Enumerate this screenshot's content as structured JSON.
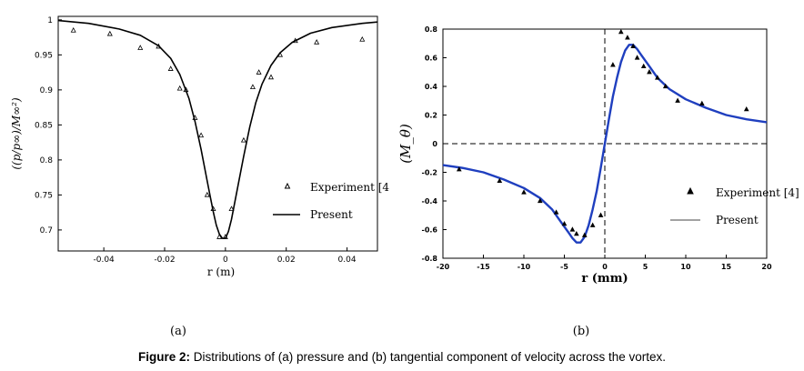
{
  "caption": {
    "prefix": "Figure 2:",
    "text": " Distributions of (a) pressure and (b) tangential component of velocity across the vortex."
  },
  "chart_data": [
    {
      "type": "line",
      "panel_label": "(a)",
      "xlabel": "r (m)",
      "ylabel": "((p/p∞)/M∞²)",
      "xlim": [
        -0.055,
        0.05
      ],
      "ylim": [
        0.67,
        1.005
      ],
      "xticks": [
        -0.04,
        -0.02,
        0,
        0.02,
        0.04
      ],
      "xtick_labels": [
        "-0.04",
        "-0.02",
        "0",
        "0.02",
        "0.04"
      ],
      "yticks": [
        0.7,
        0.75,
        0.8,
        0.85,
        0.9,
        0.95,
        1
      ],
      "ytick_labels": [
        "0.7",
        "0.75",
        "0.8",
        "0.85",
        "0.9",
        "0.95",
        "1"
      ],
      "legend": {
        "placement": "right",
        "entries": [
          "Experiment [4",
          "Present"
        ]
      },
      "series": [
        {
          "name": "Present",
          "style": "line",
          "x": [
            -0.055,
            -0.045,
            -0.035,
            -0.028,
            -0.022,
            -0.018,
            -0.015,
            -0.012,
            -0.01,
            -0.008,
            -0.006,
            -0.005,
            -0.004,
            -0.003,
            -0.002,
            -0.001,
            0,
            0.001,
            0.002,
            0.004,
            0.006,
            0.008,
            0.01,
            0.012,
            0.015,
            0.018,
            0.022,
            0.028,
            0.035,
            0.045,
            0.05
          ],
          "y": [
            0.999,
            0.995,
            0.987,
            0.978,
            0.963,
            0.945,
            0.922,
            0.888,
            0.855,
            0.815,
            0.77,
            0.748,
            0.726,
            0.707,
            0.694,
            0.688,
            0.688,
            0.698,
            0.715,
            0.76,
            0.805,
            0.847,
            0.882,
            0.908,
            0.935,
            0.953,
            0.968,
            0.981,
            0.989,
            0.995,
            0.997
          ]
        },
        {
          "name": "Experiment [4",
          "style": "triangle",
          "x": [
            -0.05,
            -0.038,
            -0.028,
            -0.022,
            -0.018,
            -0.015,
            -0.013,
            -0.01,
            -0.008,
            -0.006,
            -0.004,
            -0.002,
            0.0,
            0.002,
            0.006,
            0.009,
            0.011,
            0.015,
            0.018,
            0.023,
            0.03,
            0.045
          ],
          "y": [
            0.985,
            0.98,
            0.96,
            0.962,
            0.93,
            0.902,
            0.9,
            0.86,
            0.835,
            0.75,
            0.73,
            0.69,
            0.69,
            0.73,
            0.828,
            0.904,
            0.925,
            0.918,
            0.95,
            0.97,
            0.968,
            0.972
          ]
        }
      ]
    },
    {
      "type": "line",
      "panel_label": "(b)",
      "xlabel": "r (mm)",
      "ylabel": "(M_θ)",
      "xlim": [
        -20,
        20
      ],
      "ylim": [
        -0.8,
        0.8
      ],
      "xticks": [
        -20,
        -15,
        -10,
        -5,
        0,
        5,
        10,
        15,
        20
      ],
      "xtick_labels": [
        "-20",
        "-15",
        "-10",
        "-5",
        "0",
        "5",
        "10",
        "15",
        "20"
      ],
      "yticks": [
        -0.8,
        -0.6,
        -0.4,
        -0.2,
        0,
        0.2,
        0.4,
        0.6,
        0.8
      ],
      "ytick_labels": [
        "-0.8",
        "-0.6",
        "-0.4",
        "-0.2",
        "0",
        "0.2",
        "0.4",
        "0.6",
        "0.8"
      ],
      "reference_lines": {
        "x": 0,
        "y": 0,
        "style": "dashed"
      },
      "legend": {
        "placement": "right",
        "entries": [
          "Experiment [4]",
          "Present"
        ]
      },
      "series": [
        {
          "name": "Present",
          "style": "line",
          "color": "#1f3fbf",
          "x": [
            -20,
            -17.5,
            -15,
            -12.5,
            -10,
            -8,
            -6.5,
            -5.5,
            -4.5,
            -4,
            -3.5,
            -3,
            -2.5,
            -2,
            -1.5,
            -1,
            -0.5,
            0,
            0.5,
            1,
            1.5,
            2,
            2.5,
            3,
            3.5,
            4,
            4.5,
            5.5,
            6.5,
            8,
            10,
            12.5,
            15,
            17.5,
            20
          ],
          "y": [
            -0.15,
            -0.17,
            -0.2,
            -0.25,
            -0.31,
            -0.38,
            -0.46,
            -0.54,
            -0.62,
            -0.66,
            -0.69,
            -0.69,
            -0.65,
            -0.57,
            -0.46,
            -0.33,
            -0.17,
            0.0,
            0.17,
            0.33,
            0.46,
            0.57,
            0.65,
            0.69,
            0.69,
            0.66,
            0.62,
            0.54,
            0.46,
            0.38,
            0.31,
            0.25,
            0.2,
            0.17,
            0.15
          ]
        },
        {
          "name": "Experiment [4]",
          "style": "triangle",
          "x": [
            -18,
            -13,
            -10,
            -8,
            -6,
            -5,
            -4,
            -3.5,
            -2.5,
            -1.5,
            -0.5,
            1,
            2,
            2.8,
            3.5,
            4,
            4.8,
            5.5,
            6.5,
            7.5,
            9,
            12,
            17.5
          ],
          "y": [
            -0.18,
            -0.26,
            -0.34,
            -0.4,
            -0.48,
            -0.56,
            -0.6,
            -0.63,
            -0.64,
            -0.57,
            -0.5,
            0.55,
            0.78,
            0.74,
            0.68,
            0.6,
            0.54,
            0.5,
            0.46,
            0.4,
            0.3,
            0.28,
            0.24
          ]
        }
      ]
    }
  ]
}
